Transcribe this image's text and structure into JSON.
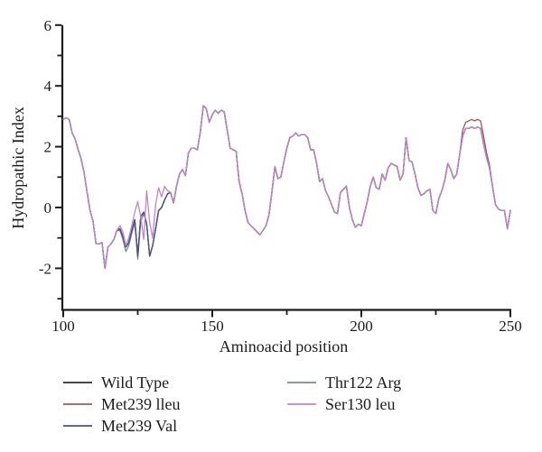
{
  "figure": {
    "type": "scientific-line-plot",
    "title": ""
  },
  "chart_data": {
    "type": "line",
    "title": "",
    "xlabel": "Aminoacid position",
    "ylabel": "Hydropathic Index",
    "xlim": [
      100,
      250
    ],
    "ylim": [
      -3.4,
      6
    ],
    "xticks_major": [
      100,
      150,
      200,
      250
    ],
    "xticks_minor": [
      125,
      175,
      225
    ],
    "yticks_major": [
      -2,
      0,
      2,
      4,
      6
    ],
    "yticks_minor": [
      -3,
      -1,
      1,
      3,
      5
    ],
    "grid": false,
    "legend_position": "below-two-columns",
    "axis_color": "#1c1c1c",
    "x_start": 100,
    "x_step": 1,
    "draw_order": [
      "Wild Type",
      "Met239 lleu",
      "Thr122 Arg",
      "Met239 Val",
      "Ser130 leu"
    ],
    "legend_columns": [
      [
        "Wild Type",
        "Met239 lleu",
        "Met239 Val"
      ],
      [
        "Thr122 Arg",
        "Ser130 leu"
      ]
    ],
    "series": [
      {
        "name": "Wild Type",
        "color": "#2d2d2d",
        "base": "Ser130 leu",
        "overrides": {
          "118": -0.75,
          "119": -0.7,
          "120": -0.95,
          "121": -1.3,
          "122": -1.15,
          "123": -0.75,
          "124": -0.4,
          "125": -1.6,
          "126": -0.3,
          "127": -0.15,
          "128": -0.55,
          "129": -1.6,
          "130": -1.25,
          "131": -0.7,
          "132": -0.1,
          "133": 0.0,
          "134": 0.25,
          "135": 0.45,
          "136": 0.5
        }
      },
      {
        "name": "Met239 lleu",
        "color": "#9c5a57",
        "base": "Wild Type",
        "overrides": {
          "234": 2.55,
          "235": 2.8,
          "236": 2.85,
          "237": 2.9,
          "238": 2.85,
          "239": 2.9,
          "240": 2.85,
          "241": 2.35,
          "242": 1.8,
          "243": 1.4
        }
      },
      {
        "name": "Met239 Val",
        "color": "#4a4f8c",
        "base": "Wild Type",
        "overrides": {}
      },
      {
        "name": "Thr122 Arg",
        "color": "#7c8b85",
        "base": "Wild Type",
        "overrides": {
          "119": -0.75,
          "120": -1.05,
          "121": -1.45,
          "122": -1.25,
          "123": -0.85,
          "124": -0.5,
          "125": -1.7,
          "126": -0.45,
          "127": -0.2
        }
      },
      {
        "name": "Ser130 leu",
        "color": "#c285c6",
        "values": [
          2.9,
          2.95,
          2.9,
          2.45,
          2.25,
          1.9,
          1.6,
          1.15,
          0.5,
          -0.1,
          -0.45,
          -1.2,
          -1.2,
          -1.15,
          -2.0,
          -1.3,
          -1.2,
          -1.05,
          -0.75,
          -0.6,
          -0.8,
          -1.25,
          -1.0,
          -0.6,
          -0.15,
          0.2,
          -0.3,
          -1.05,
          0.55,
          -0.5,
          -1.0,
          0.1,
          0.65,
          0.35,
          0.7,
          0.55,
          0.5,
          0.15,
          0.7,
          1.1,
          1.25,
          1.05,
          1.8,
          1.95,
          1.95,
          1.9,
          2.5,
          3.35,
          3.25,
          2.8,
          3.05,
          3.2,
          3.1,
          3.2,
          3.15,
          2.55,
          1.95,
          1.9,
          1.85,
          0.85,
          0.45,
          -0.1,
          -0.5,
          -0.6,
          -0.7,
          -0.8,
          -0.9,
          -0.75,
          -0.6,
          -0.25,
          0.5,
          1.35,
          0.95,
          1.0,
          1.5,
          1.95,
          2.3,
          2.35,
          2.45,
          2.35,
          2.4,
          2.4,
          2.3,
          1.9,
          1.9,
          1.45,
          0.85,
          0.95,
          0.55,
          0.35,
          0.1,
          -0.15,
          -0.2,
          0.5,
          0.6,
          0.7,
          0.0,
          -0.4,
          -0.65,
          -0.55,
          -0.6,
          -0.2,
          0.2,
          0.7,
          1.0,
          0.65,
          0.6,
          1.1,
          0.9,
          1.3,
          1.45,
          1.4,
          1.35,
          0.9,
          1.1,
          2.3,
          1.55,
          1.5,
          1.1,
          0.65,
          0.4,
          0.45,
          0.55,
          0.6,
          -0.1,
          -0.2,
          0.3,
          0.55,
          0.9,
          1.45,
          1.25,
          0.95,
          1.1,
          1.75,
          2.35,
          2.6,
          2.6,
          2.65,
          2.6,
          2.65,
          2.6,
          2.1,
          1.65,
          1.3,
          0.7,
          0.1,
          -0.05,
          -0.1,
          -0.1,
          -0.7,
          -0.1
        ]
      }
    ]
  }
}
